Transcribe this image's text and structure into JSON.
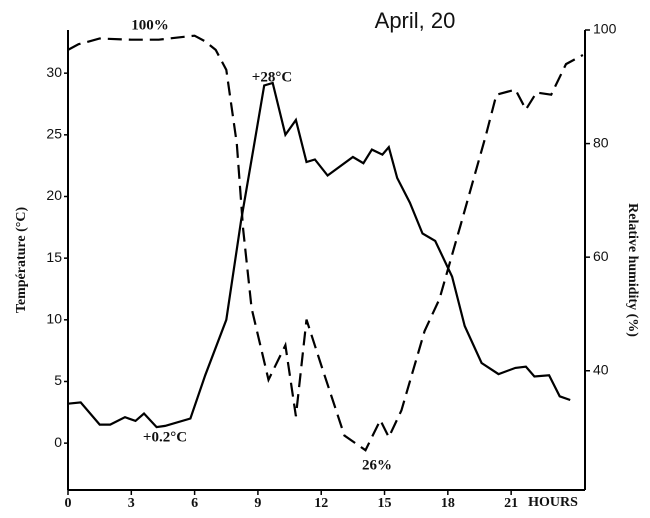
{
  "chart_data": {
    "type": "line",
    "title": "April, 20",
    "x_label": "HOURS",
    "y_label": "Température (°C)",
    "y2_label": "Relative humidity (%)",
    "annotations": [
      "100%",
      "+28°C",
      "+0.2°C",
      "26%"
    ],
    "xlim": [
      0,
      24.5
    ],
    "xticks": [
      0,
      3,
      6,
      9,
      12,
      15,
      18,
      21
    ],
    "ylim": [
      -3.8,
      33.5
    ],
    "yticks": [
      0,
      5,
      10,
      15,
      20,
      25,
      30
    ],
    "y2lim": [
      19,
      100
    ],
    "y2ticks": [
      40,
      60,
      80,
      100
    ],
    "series": [
      {
        "color": "#000000",
        "dash": false,
        "x": [
          0,
          0.6,
          1.5,
          2,
          2.7,
          3.2,
          3.6,
          4.2,
          4.6,
          5.8,
          6.5,
          7.5,
          8.2,
          8.8,
          9.3,
          9.7,
          10.3,
          10.8,
          11.3,
          11.7,
          12.3,
          13.5,
          14,
          14.4,
          14.9,
          15.2,
          15.6,
          16.2,
          16.8,
          17.4,
          18.2,
          18.8,
          19.6,
          20.4,
          21.2,
          21.7,
          22.1,
          22.8,
          23.3,
          23.8
        ],
        "values": [
          3.2,
          3.3,
          1.5,
          1.5,
          2.1,
          1.8,
          2.4,
          1.3,
          1.4,
          2.0,
          5.5,
          10,
          18,
          24,
          29,
          29.2,
          25,
          26.2,
          22.8,
          23,
          21.7,
          23.2,
          22.7,
          23.8,
          23.4,
          24,
          21.5,
          19.5,
          17,
          16.4,
          13.5,
          9.5,
          6.5,
          5.6,
          6.1,
          6.2,
          5.4,
          5.5,
          3.8,
          3.5
        ]
      },
      {
        "color": "#000000",
        "dash": true,
        "axis": "y2",
        "x": [
          0,
          0.5,
          1,
          1.5,
          3,
          4.3,
          5.5,
          6,
          6.5,
          7,
          7.5,
          8,
          8.3,
          8.7,
          9.5,
          10.3,
          10.8,
          11.3,
          12,
          13.1,
          14.1,
          14.8,
          15.2,
          15.8,
          16.9,
          17.6,
          18.6,
          19.8,
          20.3,
          21.2,
          21.7,
          22.2,
          22.9,
          23.6,
          24.4
        ],
        "values": [
          96.5,
          97.5,
          98,
          98.5,
          98.3,
          98.3,
          98.8,
          99,
          98,
          96.5,
          93,
          80,
          65,
          51,
          38.4,
          44.5,
          32,
          49,
          41,
          28.6,
          26,
          31.3,
          28.3,
          33,
          47,
          52.6,
          65.6,
          81.4,
          88.6,
          89.5,
          86,
          89,
          88.6,
          94,
          95.6
        ]
      }
    ]
  }
}
